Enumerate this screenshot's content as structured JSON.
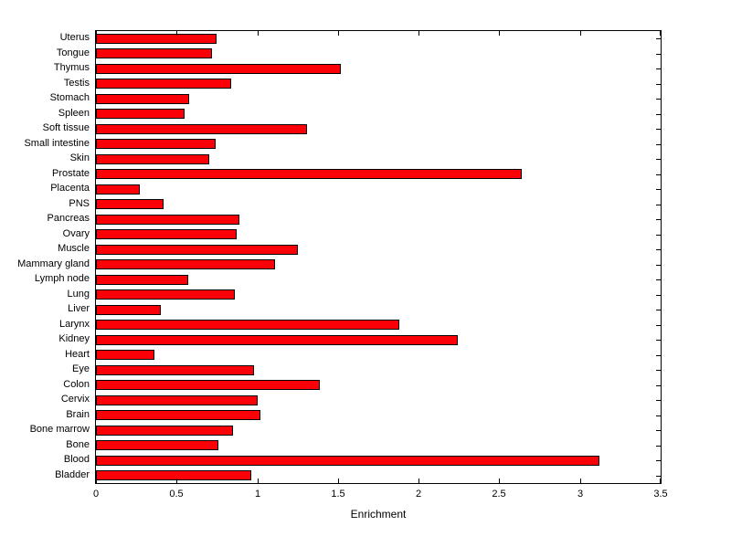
{
  "chart_data": {
    "type": "bar",
    "orientation": "horizontal",
    "title": "",
    "xlabel": "Enrichment",
    "ylabel": "",
    "xlim": [
      0,
      3.5
    ],
    "xticks": [
      "0",
      "0.5",
      "1",
      "1.5",
      "2",
      "2.5",
      "3",
      "3.5"
    ],
    "xtick_values": [
      0,
      0.5,
      1,
      1.5,
      2,
      2.5,
      3,
      3.5
    ],
    "grid": false,
    "legend": "none",
    "bar_color": "#fb0006",
    "bar_edge_color": "#000000",
    "categories": [
      "Uterus",
      "Tongue",
      "Thymus",
      "Testis",
      "Stomach",
      "Spleen",
      "Soft tissue",
      "Small intestine",
      "Skin",
      "Prostate",
      "Placenta",
      "PNS",
      "Pancreas",
      "Ovary",
      "Muscle",
      "Mammary gland",
      "Lymph node",
      "Lung",
      "Liver",
      "Larynx",
      "Kidney",
      "Heart",
      "Eye",
      "Colon",
      "Cervix",
      "Brain",
      "Bone marrow",
      "Bone",
      "Blood",
      "Bladder"
    ],
    "values": [
      0.75,
      0.72,
      1.52,
      0.84,
      0.58,
      0.55,
      1.31,
      0.74,
      0.7,
      2.64,
      0.27,
      0.42,
      0.89,
      0.87,
      1.25,
      1.11,
      0.57,
      0.86,
      0.4,
      1.88,
      2.24,
      0.36,
      0.98,
      1.39,
      1.0,
      1.02,
      0.85,
      0.76,
      3.12,
      0.96
    ]
  }
}
